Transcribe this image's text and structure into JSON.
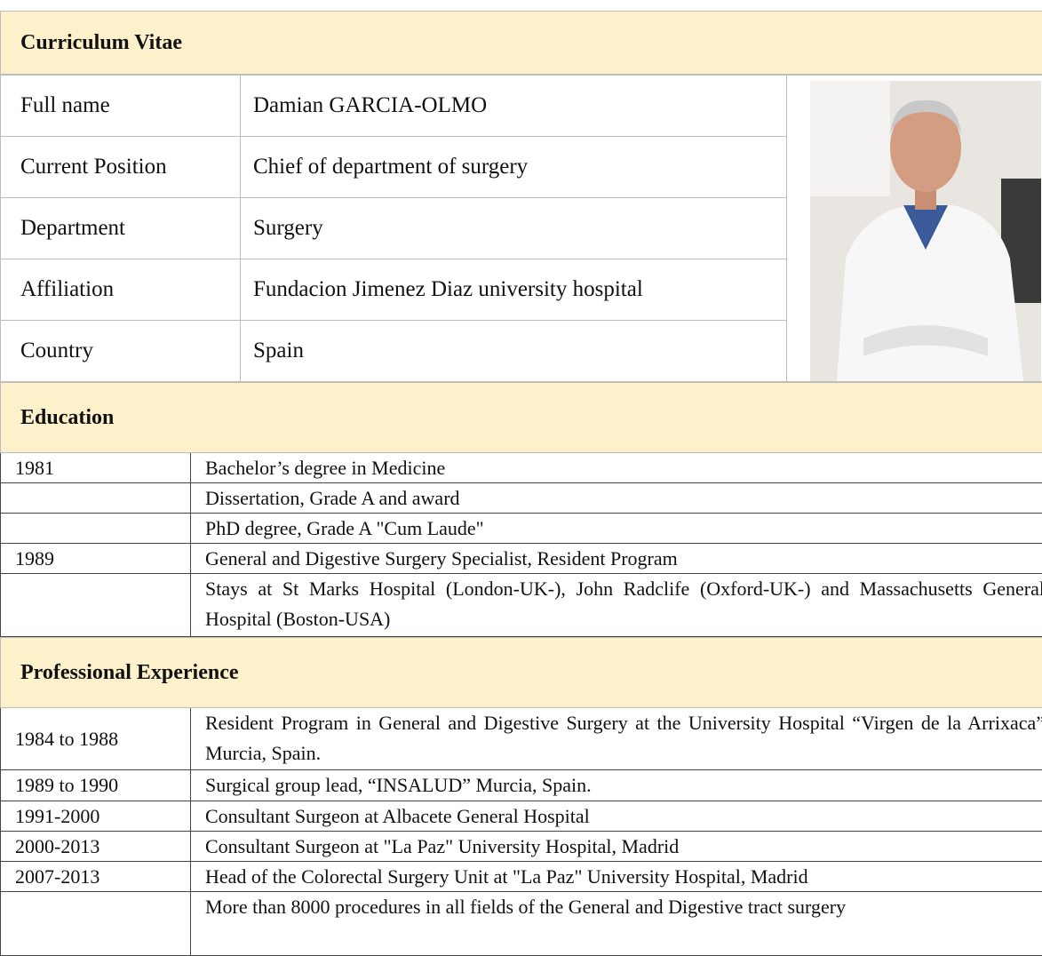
{
  "title": "Curriculum Vitae",
  "profile": [
    {
      "label": "Full name",
      "value": "Damian GARCIA-OLMO"
    },
    {
      "label": "Current Position",
      "value": "Chief of department of surgery"
    },
    {
      "label": "Department",
      "value": "Surgery"
    },
    {
      "label": "Affiliation",
      "value": "Fundacion Jimenez Diaz university hospital"
    },
    {
      "label": "Country",
      "value": "Spain"
    }
  ],
  "education": {
    "title": "Education",
    "rows": [
      {
        "year": "1981",
        "text": "Bachelor’s degree in Medicine"
      },
      {
        "text": "Dissertation, Grade A and award"
      },
      {
        "text": "PhD degree, Grade A \"Cum Laude\""
      },
      {
        "year": "1989",
        "text": "General and Digestive Surgery Specialist, Resident Program"
      },
      {
        "text": "Stays at St Marks Hospital (London-UK-), John Radclife (Oxford-UK-) and Massachusetts General Hospital (Boston-USA)"
      }
    ]
  },
  "experience": {
    "title": "Professional Experience",
    "rows": [
      {
        "year": "1984 to 1988",
        "text": "Resident Program in General and Digestive Surgery at the University Hospital “Virgen de la Arrixaca” Murcia, Spain."
      },
      {
        "year": "1989 to 1990",
        "text": "Surgical group lead, “INSALUD” Murcia, Spain."
      },
      {
        "year": "1991-2000",
        "text": "Consultant Surgeon at Albacete General Hospital"
      },
      {
        "year": "2000-2013",
        "text": "Consultant Surgeon at \"La Paz\" University Hospital, Madrid"
      },
      {
        "year": "2007-2013",
        "text": "Head of the Colorectal Surgery Unit at \"La Paz\" University Hospital, Madrid"
      },
      {
        "text": "More than 8000 procedures in all fields of the General and Digestive tract surgery"
      }
    ]
  }
}
